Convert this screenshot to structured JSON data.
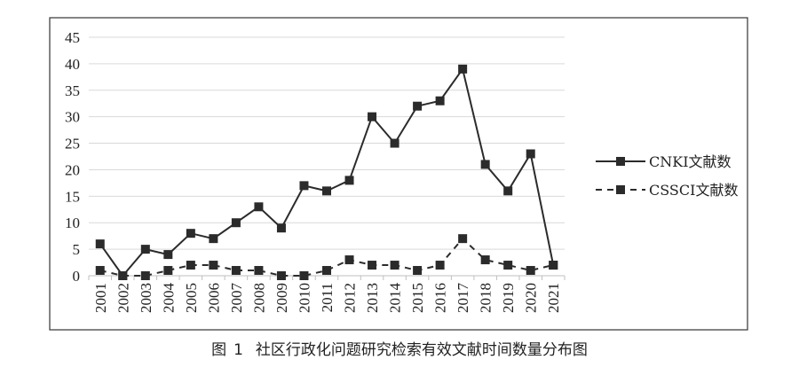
{
  "chart_data": {
    "type": "line",
    "categories": [
      "2001",
      "2002",
      "2003",
      "2004",
      "2005",
      "2006",
      "2007",
      "2008",
      "2009",
      "2010",
      "2011",
      "2012",
      "2013",
      "2014",
      "2015",
      "2016",
      "2017",
      "2018",
      "2019",
      "2020",
      "2021"
    ],
    "series": [
      {
        "name": "CNKI文献数",
        "style": "solid",
        "marker": "square",
        "values": [
          6,
          0,
          5,
          4,
          8,
          7,
          10,
          13,
          9,
          17,
          16,
          18,
          30,
          25,
          32,
          33,
          39,
          21,
          16,
          23,
          2
        ]
      },
      {
        "name": "CSSCI文献数",
        "style": "dashed",
        "marker": "square",
        "values": [
          1,
          0,
          0,
          1,
          2,
          2,
          1,
          1,
          0,
          0,
          1,
          3,
          2,
          2,
          1,
          2,
          7,
          3,
          2,
          1,
          2
        ]
      }
    ],
    "yticks": [
      0,
      5,
      10,
      15,
      20,
      25,
      30,
      35,
      40,
      45
    ],
    "ylim": [
      0,
      45
    ],
    "grid": true,
    "legend_position": "right",
    "title": "",
    "xlabel": "",
    "ylabel": ""
  },
  "caption": {
    "figure_label": "图",
    "figure_number": "1",
    "text": "社区行政化问题研究检索有效文献时间数量分布图"
  },
  "colors": {
    "line": "#2b2b2b",
    "grid": "#d9d9d9",
    "frame": "#333333"
  }
}
